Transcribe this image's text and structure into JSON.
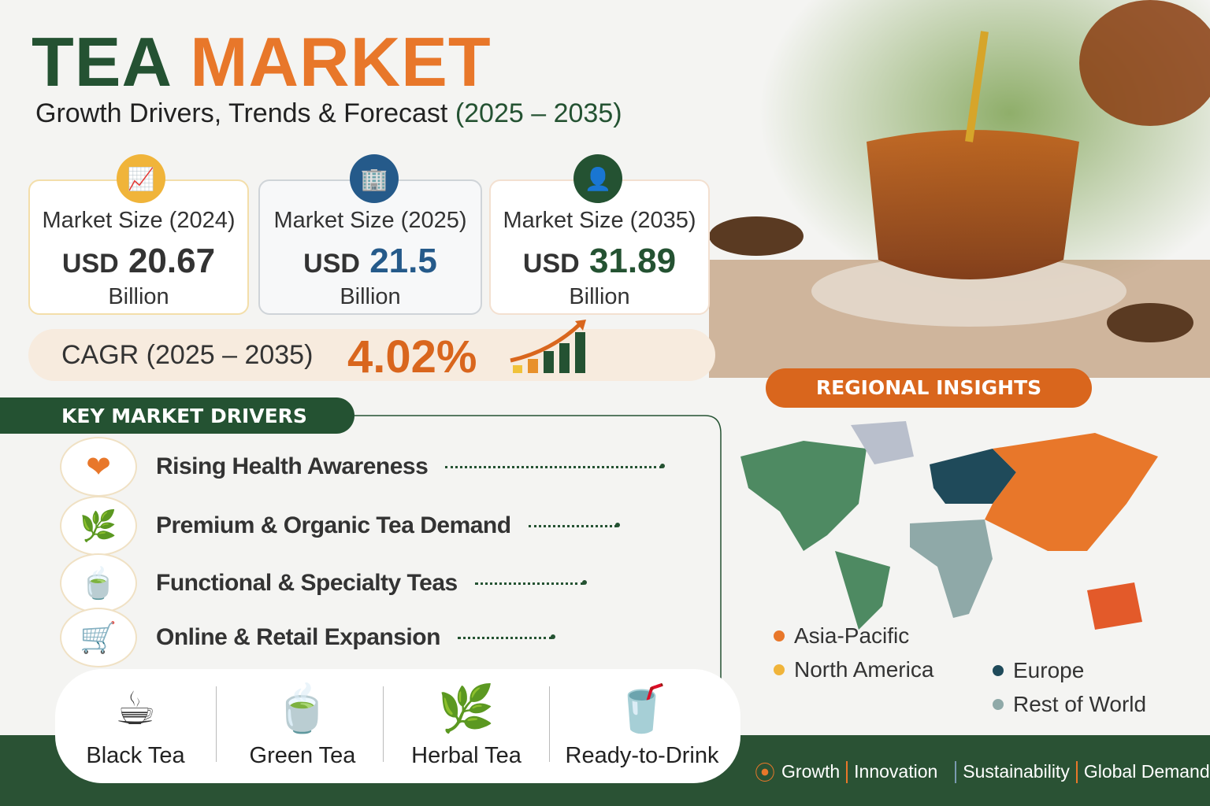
{
  "header": {
    "title_part1": "TEA",
    "title_part2": "MARKET",
    "subtitle": "Growth Drivers, Trends & Forecast",
    "subtitle_years": "(2025 – 2035)"
  },
  "cards": [
    {
      "label": "Market Size (2024)",
      "currency": "USD",
      "value": "20.67",
      "unit": "Billion",
      "color": "#333333",
      "icon": "chart-growth-icon",
      "icon_bg": "#f0b43a"
    },
    {
      "label": "Market Size (2025)",
      "currency": "USD",
      "value": "21.5",
      "unit": "Billion",
      "color": "#255a8a",
      "icon": "building-chart-icon",
      "icon_bg": "#255a8a"
    },
    {
      "label": "Market Size (2035)",
      "currency": "USD",
      "value": "31.89",
      "unit": "Billion",
      "color": "#245232",
      "icon": "tea-picker-icon",
      "icon_bg": "#245232"
    }
  ],
  "cagr": {
    "label": "CAGR (2025 – 2035)",
    "value": "4.02%",
    "icon": "growth-bars-arrow-icon"
  },
  "drivers": {
    "heading": "KEY MARKET DRIVERS",
    "items": [
      {
        "label": "Rising Health Awareness",
        "icon": "heart-icon"
      },
      {
        "label": "Premium & Organic Tea Demand",
        "icon": "leaf-icon"
      },
      {
        "label": "Functional & Specialty Teas",
        "icon": "specialty-tea-icon"
      },
      {
        "label": "Online & Retail Expansion",
        "icon": "shopping-cart-icon"
      }
    ]
  },
  "tea_types": [
    {
      "label": "Black Tea"
    },
    {
      "label": "Green Tea"
    },
    {
      "label": "Herbal Tea"
    },
    {
      "label": "Ready-to-Drink"
    }
  ],
  "regional": {
    "heading": "REGIONAL INSIGHTS",
    "legend": [
      {
        "label": "Asia-Pacific",
        "color": "#e8772a"
      },
      {
        "label": "North America",
        "color": "#f0b43a"
      },
      {
        "label": "Europe",
        "color": "#1f4a5a"
      },
      {
        "label": "Rest of World",
        "color": "#8fa9a8"
      }
    ]
  },
  "footer": {
    "tags": [
      "Growth",
      "Innovation",
      "Sustainability",
      "Global Demand"
    ]
  }
}
